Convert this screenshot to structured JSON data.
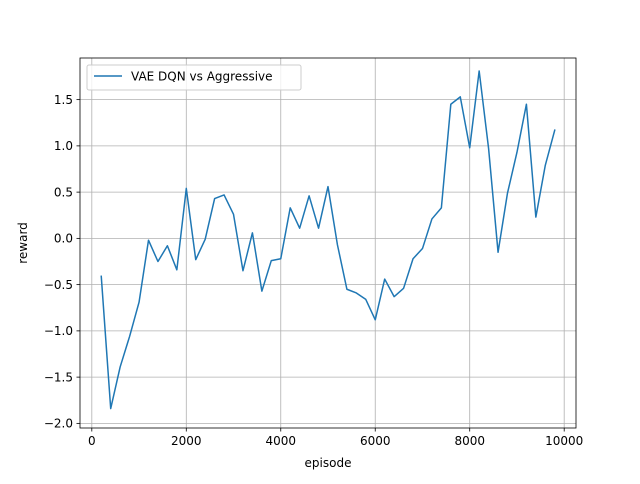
{
  "chart_data": {
    "type": "line",
    "xlabel": "episode",
    "ylabel": "reward",
    "xlim": [
      -250,
      10250
    ],
    "ylim": [
      -2.05,
      1.95
    ],
    "xticks": [
      0,
      2000,
      4000,
      6000,
      8000,
      10000
    ],
    "yticks": [
      -2.0,
      -1.5,
      -1.0,
      -0.5,
      0.0,
      0.5,
      1.0,
      1.5
    ],
    "ytick_labels": [
      "−2.0",
      "−1.5",
      "−1.0",
      "−0.5",
      "0.0",
      "0.5",
      "1.0",
      "1.5"
    ],
    "grid": true,
    "legend_position": "top-left",
    "series": [
      {
        "name": "VAE DQN vs Aggressive",
        "color": "#1f77b4",
        "x": [
          200,
          400,
          600,
          800,
          1000,
          1200,
          1400,
          1600,
          1800,
          2000,
          2200,
          2400,
          2600,
          2800,
          3000,
          3200,
          3400,
          3600,
          3800,
          4000,
          4200,
          4400,
          4600,
          4800,
          5000,
          5200,
          5400,
          5600,
          5800,
          6000,
          6200,
          6400,
          6600,
          6800,
          7000,
          7200,
          7400,
          7600,
          7800,
          8000,
          8200,
          8400,
          8600,
          8800,
          9000,
          9200,
          9400,
          9600,
          9800
        ],
        "y": [
          -0.41,
          -1.84,
          -1.39,
          -1.06,
          -0.69,
          -0.02,
          -0.25,
          -0.08,
          -0.34,
          0.54,
          -0.23,
          -0.01,
          0.43,
          0.47,
          0.26,
          -0.35,
          0.06,
          -0.57,
          -0.24,
          -0.22,
          0.33,
          0.11,
          0.46,
          0.11,
          0.56,
          -0.07,
          -0.55,
          -0.59,
          -0.66,
          -0.88,
          -0.44,
          -0.63,
          -0.54,
          -0.22,
          -0.11,
          0.21,
          0.33,
          1.45,
          1.53,
          0.98,
          1.81,
          0.97,
          -0.15,
          0.49,
          0.93,
          1.45,
          0.23,
          0.79,
          1.17
        ]
      }
    ]
  }
}
